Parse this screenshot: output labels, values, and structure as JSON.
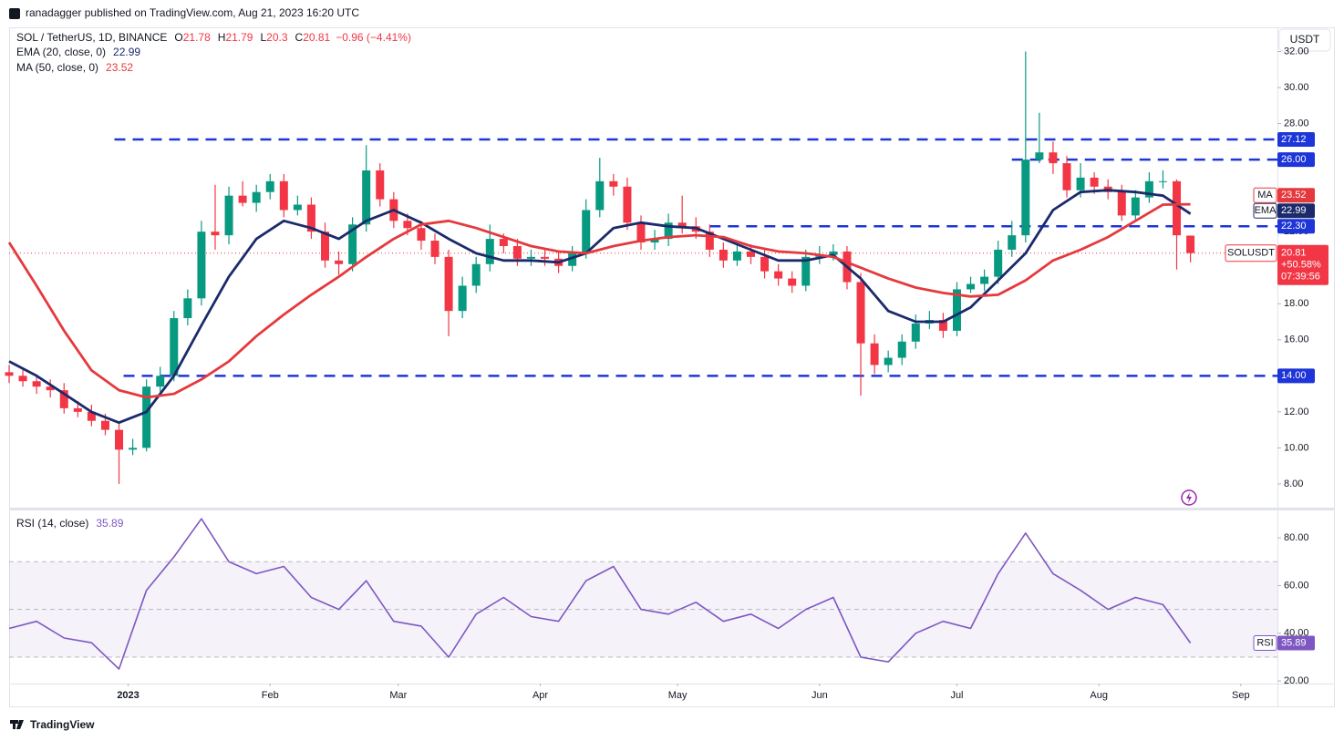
{
  "header": {
    "publisher": "ranadagger published on TradingView.com, Aug 21, 2023 16:20 UTC",
    "currency_button": "USDT",
    "footer": "TradingView"
  },
  "chart_data": [
    {
      "type": "candlestick",
      "title": "SOL / TetherUS, 1D, BINANCE",
      "ohlc_legend": [
        {
          "label": "O",
          "value": 21.78
        },
        {
          "label": "H",
          "value": 21.79
        },
        {
          "label": "L",
          "value": 20.3
        },
        {
          "label": "C",
          "value": 20.81
        }
      ],
      "change": "−0.96 (−4.41%)",
      "up_color": "#089981",
      "down_color": "#f23645",
      "xlim": [
        -26,
        251
      ],
      "xticks": [
        {
          "value": 0,
          "label": "2023"
        },
        {
          "value": 31,
          "label": "Feb"
        },
        {
          "value": 59,
          "label": "Mar"
        },
        {
          "value": 90,
          "label": "Apr"
        },
        {
          "value": 120,
          "label": "May"
        },
        {
          "value": 151,
          "label": "Jun"
        },
        {
          "value": 181,
          "label": "Jul"
        },
        {
          "value": 212,
          "label": "Aug"
        },
        {
          "value": 243,
          "label": "Sep"
        }
      ],
      "ylim": [
        6.63,
        32.33
      ],
      "yticks": [
        {
          "value": 8,
          "label": "8.00"
        },
        {
          "value": 10,
          "label": "10.00"
        },
        {
          "value": 12,
          "label": "12.00"
        },
        {
          "value": 14,
          "label": "14.00"
        },
        {
          "value": 16,
          "label": "16.00"
        },
        {
          "value": 18,
          "label": "18.00"
        },
        {
          "value": 20,
          "label": "20.00"
        },
        {
          "value": 22,
          "label": "22.00"
        },
        {
          "value": 24,
          "label": "24.00"
        },
        {
          "value": 26,
          "label": "26.00"
        },
        {
          "value": 28,
          "label": "28.00"
        },
        {
          "value": 30,
          "label": "30.00"
        },
        {
          "value": 32,
          "label": "32.00"
        }
      ],
      "x": [
        -26,
        -23,
        -20,
        -17,
        -14,
        -11,
        -8,
        -5,
        -2,
        1,
        4,
        7,
        10,
        13,
        16,
        19,
        22,
        25,
        28,
        31,
        34,
        37,
        40,
        43,
        46,
        49,
        52,
        55,
        58,
        61,
        64,
        67,
        70,
        73,
        76,
        79,
        82,
        85,
        88,
        91,
        94,
        97,
        100,
        103,
        106,
        109,
        112,
        115,
        118,
        121,
        124,
        127,
        130,
        133,
        136,
        139,
        142,
        145,
        148,
        151,
        154,
        157,
        160,
        163,
        166,
        169,
        172,
        175,
        178,
        181,
        184,
        187,
        190,
        193,
        196,
        199,
        202,
        205,
        208,
        211,
        214,
        217,
        220,
        223,
        226,
        229,
        232
      ],
      "open": [
        14.2,
        14.0,
        13.7,
        13.4,
        13.2,
        12.2,
        12.0,
        11.5,
        11.0,
        9.9,
        10.0,
        13.4,
        14.0,
        17.2,
        18.3,
        22.0,
        21.8,
        24.0,
        23.6,
        24.2,
        24.8,
        23.2,
        23.5,
        22.0,
        20.4,
        20.2,
        22.4,
        25.4,
        23.8,
        22.6,
        22.2,
        21.5,
        20.6,
        17.6,
        19.0,
        20.2,
        21.6,
        21.2,
        20.5,
        20.6,
        20.5,
        20.1,
        20.8,
        23.2,
        24.8,
        24.5,
        22.5,
        21.4,
        21.6,
        22.5,
        22.3,
        22.0,
        21.0,
        20.4,
        20.9,
        20.6,
        19.8,
        19.4,
        19.0,
        20.6,
        20.7,
        20.9,
        19.2,
        15.8,
        14.6,
        15.0,
        15.9,
        16.9,
        17.1,
        16.5,
        18.8,
        19.1,
        19.5,
        21.0,
        21.8,
        26.0,
        26.4,
        25.8,
        24.3,
        25.0,
        24.5,
        24.2,
        22.9,
        23.9,
        24.8,
        24.8,
        21.78
      ],
      "high": [
        14.6,
        14.4,
        14.0,
        13.8,
        13.6,
        12.6,
        12.4,
        11.9,
        11.4,
        10.5,
        13.8,
        14.5,
        17.6,
        18.8,
        22.6,
        24.6,
        24.5,
        24.8,
        24.6,
        25.2,
        25.2,
        24.0,
        23.9,
        22.5,
        20.9,
        22.8,
        26.8,
        25.8,
        24.2,
        23.0,
        22.6,
        21.9,
        21.0,
        19.5,
        20.6,
        22.4,
        21.9,
        21.6,
        21.0,
        21.0,
        20.9,
        21.2,
        23.8,
        26.1,
        25.2,
        25.0,
        22.9,
        22.1,
        23.0,
        24.0,
        22.8,
        22.4,
        21.4,
        21.3,
        21.3,
        21.0,
        20.2,
        19.8,
        21.0,
        21.2,
        21.3,
        21.2,
        19.7,
        16.3,
        15.4,
        16.3,
        17.4,
        17.6,
        17.5,
        19.2,
        19.5,
        19.9,
        21.5,
        22.6,
        32.0,
        28.6,
        27.0,
        26.2,
        25.8,
        25.3,
        24.9,
        24.6,
        24.3,
        25.3,
        25.4,
        24.9,
        21.79
      ],
      "low": [
        13.6,
        13.4,
        13.0,
        12.8,
        11.9,
        11.7,
        11.2,
        10.7,
        8.0,
        9.6,
        9.8,
        13.1,
        13.7,
        16.8,
        17.9,
        21.0,
        21.3,
        23.4,
        23.1,
        23.8,
        22.8,
        22.9,
        21.6,
        20.0,
        19.6,
        19.8,
        22.0,
        23.4,
        22.2,
        21.8,
        21.0,
        20.2,
        16.2,
        17.2,
        18.6,
        19.8,
        20.8,
        20.1,
        20.1,
        20.1,
        19.7,
        19.8,
        20.5,
        22.8,
        24.0,
        22.1,
        21.0,
        21.0,
        21.2,
        21.9,
        21.6,
        20.6,
        20.0,
        20.1,
        20.2,
        19.4,
        19.0,
        18.6,
        18.7,
        20.2,
        20.4,
        18.8,
        12.9,
        14.1,
        14.2,
        14.6,
        15.5,
        16.6,
        16.1,
        16.2,
        18.6,
        18.7,
        19.1,
        20.6,
        21.4,
        25.8,
        25.2,
        23.9,
        23.9,
        24.1,
        23.8,
        22.6,
        22.6,
        23.6,
        24.4,
        19.9,
        20.3
      ],
      "close": [
        14.0,
        13.7,
        13.4,
        13.2,
        12.2,
        12.0,
        11.5,
        11.0,
        9.9,
        10.0,
        13.4,
        14.0,
        17.2,
        18.3,
        22.0,
        21.8,
        24.0,
        23.6,
        24.2,
        24.8,
        23.2,
        23.5,
        22.0,
        20.4,
        20.2,
        22.4,
        25.4,
        23.8,
        22.6,
        22.2,
        21.5,
        20.6,
        17.6,
        19.0,
        20.2,
        21.6,
        21.2,
        20.5,
        20.6,
        20.5,
        20.1,
        20.8,
        23.2,
        24.8,
        24.5,
        22.5,
        21.4,
        21.6,
        22.5,
        22.3,
        22.0,
        21.0,
        20.4,
        20.9,
        20.6,
        19.8,
        19.4,
        19.0,
        20.6,
        20.7,
        20.9,
        19.2,
        15.8,
        14.6,
        15.0,
        15.9,
        16.9,
        17.1,
        16.5,
        18.8,
        19.1,
        19.5,
        21.0,
        21.8,
        26.0,
        26.4,
        25.8,
        24.3,
        25.0,
        24.5,
        24.2,
        22.9,
        23.9,
        24.8,
        24.8,
        21.8,
        20.81
      ],
      "overlays": [
        {
          "name": "EMA",
          "legend": "EMA (20, close, 0)",
          "color": "#1b2a6b",
          "x": [
            -26,
            -20,
            -14,
            -8,
            -2,
            4,
            10,
            16,
            22,
            28,
            34,
            40,
            46,
            52,
            58,
            64,
            70,
            76,
            82,
            88,
            94,
            100,
            106,
            112,
            118,
            124,
            130,
            136,
            142,
            148,
            154,
            160,
            166,
            172,
            178,
            184,
            190,
            196,
            202,
            208,
            214,
            220,
            226,
            232
          ],
          "values": [
            14.8,
            14.0,
            13.0,
            12.0,
            11.4,
            12.0,
            14.0,
            16.8,
            19.5,
            21.6,
            22.6,
            22.2,
            21.6,
            22.6,
            23.2,
            22.5,
            21.6,
            20.8,
            20.4,
            20.4,
            20.3,
            20.8,
            22.2,
            22.5,
            22.3,
            22.2,
            21.6,
            21.0,
            20.4,
            20.4,
            20.7,
            19.4,
            17.6,
            17.0,
            17.0,
            17.8,
            19.3,
            20.8,
            23.2,
            24.2,
            24.3,
            24.2,
            24.0,
            22.99
          ]
        },
        {
          "name": "MA",
          "legend": "MA (50, close, 0)",
          "color": "#e5393d",
          "x": [
            -26,
            -20,
            -14,
            -8,
            -2,
            4,
            10,
            16,
            22,
            28,
            34,
            40,
            46,
            52,
            58,
            64,
            70,
            76,
            82,
            88,
            94,
            100,
            106,
            112,
            118,
            124,
            130,
            136,
            142,
            148,
            154,
            160,
            166,
            172,
            178,
            184,
            190,
            196,
            202,
            208,
            214,
            220,
            226,
            232
          ],
          "values": [
            21.4,
            19.0,
            16.5,
            14.3,
            13.2,
            12.8,
            13.0,
            13.8,
            14.8,
            16.2,
            17.4,
            18.5,
            19.5,
            20.6,
            21.6,
            22.4,
            22.6,
            22.2,
            21.7,
            21.2,
            20.9,
            20.8,
            21.2,
            21.5,
            21.7,
            21.8,
            21.7,
            21.2,
            20.9,
            20.8,
            20.6,
            20.0,
            19.4,
            18.9,
            18.6,
            18.4,
            18.5,
            19.3,
            20.4,
            21.0,
            21.7,
            22.6,
            23.5,
            23.52
          ]
        }
      ],
      "levels": [
        {
          "value": 27.12,
          "label": "27.12",
          "from": -3
        },
        {
          "value": 26,
          "label": "26.00",
          "from": 193
        },
        {
          "value": 22.3,
          "label": "22.30",
          "from": 127
        },
        {
          "value": 14,
          "label": "14.00",
          "from": -1
        }
      ],
      "level_color": "#1e35d8",
      "last_price": {
        "name": "SOLUSDT",
        "change": "+50.58%",
        "countdown": "07:39:56"
      }
    },
    {
      "type": "line",
      "legend": "RSI (14, close)",
      "name": "RSI",
      "color": "#7e57c2",
      "x": [
        -26,
        -20,
        -14,
        -8,
        -2,
        4,
        10,
        16,
        22,
        28,
        34,
        40,
        46,
        52,
        58,
        64,
        70,
        76,
        82,
        88,
        94,
        100,
        106,
        112,
        118,
        124,
        130,
        136,
        142,
        148,
        154,
        160,
        166,
        172,
        178,
        184,
        190,
        196,
        202,
        208,
        214,
        220,
        226,
        232
      ],
      "values": [
        42,
        45,
        38,
        36,
        25,
        58,
        72,
        88,
        70,
        65,
        68,
        55,
        50,
        62,
        45,
        43,
        30,
        48,
        55,
        47,
        45,
        62,
        68,
        50,
        48,
        53,
        45,
        48,
        42,
        50,
        55,
        30,
        28,
        40,
        45,
        42,
        65,
        82,
        65,
        58,
        50,
        55,
        52,
        35.89
      ],
      "ylim": [
        18.9,
        91.5
      ],
      "yticks": [
        {
          "value": 20,
          "label": "20.00"
        },
        {
          "value": 40,
          "label": "40.00"
        },
        {
          "value": 60,
          "label": "60.00"
        },
        {
          "value": 80,
          "label": "80.00"
        }
      ],
      "bands": [
        30,
        70
      ],
      "midline": 50
    }
  ]
}
